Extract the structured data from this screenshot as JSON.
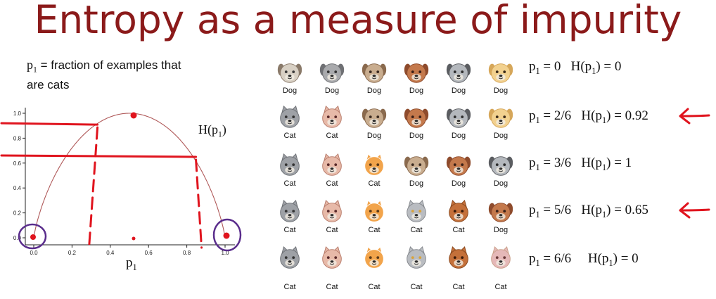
{
  "title": "Entropy as a measure of impurity",
  "definition": {
    "symbol": "p",
    "subscript": "1",
    "text_line1": " = fraction of examples that",
    "text_line2": "are cats"
  },
  "chart_data": {
    "type": "line",
    "function_label": "H(p",
    "function_label_sub": "1",
    "function_label_end": ")",
    "xlabel": "p",
    "xlabel_sub": "1",
    "x_ticks": [
      "0.0",
      "0.2",
      "0.4",
      "0.6",
      "0.8",
      "1.0"
    ],
    "y_ticks": [
      "0.0",
      "0.2",
      "0.4",
      "0.6",
      "0.8",
      "1.0"
    ],
    "xlim": [
      0,
      1
    ],
    "ylim": [
      0,
      1
    ],
    "curve": "binary entropy",
    "annotated_points": [
      {
        "p1": 0.0,
        "H": 0.0
      },
      {
        "p1": 0.333,
        "H": 0.92
      },
      {
        "p1": 0.5,
        "H": 1.0
      },
      {
        "p1": 0.833,
        "H": 0.65
      },
      {
        "p1": 1.0,
        "H": 0.0
      }
    ],
    "annotation_color": "#e0141e",
    "circle_color": "#5a2d8c",
    "curve_color": "#b05a5a"
  },
  "rows": [
    {
      "animals": [
        "Dog",
        "Dog",
        "Dog",
        "Dog",
        "Dog",
        "Dog"
      ],
      "eq_p": "p",
      "eq_p_sub": "1",
      "eq_rest": " = 0   H(p",
      "eq_h_sub": "1",
      "eq_end": ") = 0",
      "arrow": false
    },
    {
      "animals": [
        "Cat",
        "Cat",
        "Dog",
        "Dog",
        "Dog",
        "Dog"
      ],
      "eq_p": "p",
      "eq_p_sub": "1",
      "eq_rest": " = 2/6   H(p",
      "eq_h_sub": "1",
      "eq_end": ") = 0.92",
      "arrow": true
    },
    {
      "animals": [
        "Cat",
        "Cat",
        "Cat",
        "Dog",
        "Dog",
        "Dog"
      ],
      "eq_p": "p",
      "eq_p_sub": "1",
      "eq_rest": " = 3/6   H(p",
      "eq_h_sub": "1",
      "eq_end": ") = 1",
      "arrow": false
    },
    {
      "animals": [
        "Cat",
        "Cat",
        "Cat",
        "Cat",
        "Cat",
        "Dog"
      ],
      "eq_p": "p",
      "eq_p_sub": "1",
      "eq_rest": " = 5/6   H(p",
      "eq_h_sub": "1",
      "eq_end": ") = 0.65",
      "arrow": true
    },
    {
      "animals": [
        "Cat",
        "Cat",
        "Cat",
        "Cat",
        "Cat",
        "Cat"
      ],
      "eq_p": "p",
      "eq_p_sub": "1",
      "eq_rest": " = 6/6     H(p",
      "eq_h_sub": "1",
      "eq_end": ") = 0",
      "arrow": false
    }
  ],
  "animal_icons": {
    "rows": [
      [
        "pug-dog-icon",
        "gray-wolf-dog-icon",
        "tan-pug-dog-icon",
        "brown-dog-icon",
        "gray-dog-icon",
        "yellow-dog-icon"
      ],
      [
        "gray-cat-icon",
        "pink-cat-icon",
        "tan-pug-dog-icon",
        "brown-dog-icon",
        "gray-dog-icon",
        "yellow-dog-icon"
      ],
      [
        "gray-cat-icon",
        "pink-cat-icon",
        "orange-cat-icon",
        "tan-pug-dog-icon",
        "brown-dog-icon",
        "gray-dog-icon"
      ],
      [
        "gray-cat-icon",
        "pink-cat-icon",
        "orange-cat-icon",
        "gray-round-cat-icon",
        "brown-cat-icon",
        "brown-dog-icon"
      ],
      [
        "gray-cat-icon",
        "pink-cat-icon",
        "orange-cat-icon",
        "gray-round-cat-icon",
        "brown-cat-icon",
        "pink-ear-cat-icon"
      ]
    ]
  }
}
